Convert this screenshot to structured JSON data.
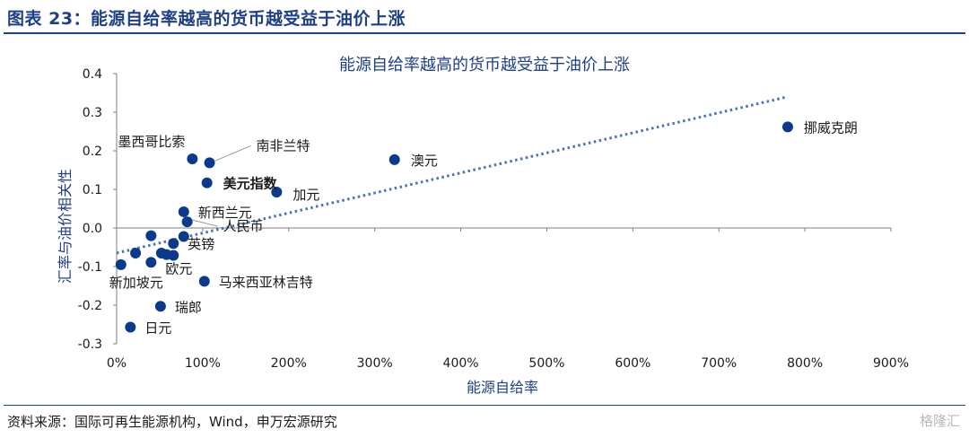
{
  "header": {
    "title": "图表 23：能源自给率越高的货币越受益于油价上涨"
  },
  "footer": {
    "source": "资料来源：国际可再生能源机构，Wind，申万宏源研究",
    "watermark": "格隆汇"
  },
  "colors": {
    "accent": "#1f3f86",
    "point": "#0a3a8c",
    "trend": "#4a72b8"
  },
  "chart_data": {
    "type": "scatter",
    "title": "能源自给率越高的货币越受益于油价上涨",
    "xlabel": "能源自给率",
    "ylabel": "汇率与油价相关性",
    "xlim": [
      0,
      900
    ],
    "ylim": [
      -0.3,
      0.4
    ],
    "x_ticks": [
      "0%",
      "100%",
      "200%",
      "300%",
      "400%",
      "500%",
      "600%",
      "700%",
      "800%",
      "900%"
    ],
    "y_ticks": [
      "-0.3",
      "-0.2",
      "-0.1",
      "0.0",
      "0.1",
      "0.2",
      "0.3",
      "0.4"
    ],
    "grid": false,
    "trendline": {
      "style": "dotted",
      "x": [
        0,
        780
      ],
      "y": [
        -0.065,
        0.34
      ]
    },
    "points": [
      {
        "label": "挪威克朗",
        "x": 780,
        "y": 0.262
      },
      {
        "label": "澳元",
        "x": 323,
        "y": 0.177
      },
      {
        "label": "墨西哥比索",
        "x": 88,
        "y": 0.179
      },
      {
        "label": "南非兰特",
        "x": 108,
        "y": 0.169
      },
      {
        "label": "美元指数",
        "x": 105,
        "y": 0.117,
        "bold": true
      },
      {
        "label": "加元",
        "x": 186,
        "y": 0.093
      },
      {
        "label": "新西兰元",
        "x": 78,
        "y": 0.042
      },
      {
        "label": "人民币",
        "x": 82,
        "y": 0.016
      },
      {
        "label": "",
        "x": 40,
        "y": -0.02
      },
      {
        "label": "",
        "x": 78,
        "y": -0.022
      },
      {
        "label": "英镑",
        "x": 66,
        "y": -0.04
      },
      {
        "label": "",
        "x": 22,
        "y": -0.065
      },
      {
        "label": "",
        "x": 52,
        "y": -0.065
      },
      {
        "label": "",
        "x": 58,
        "y": -0.069
      },
      {
        "label": "",
        "x": 66,
        "y": -0.071
      },
      {
        "label": "欧元",
        "x": 40,
        "y": -0.089
      },
      {
        "label": "新加坡元",
        "x": 5,
        "y": -0.095
      },
      {
        "label": "马来西亚林吉特",
        "x": 102,
        "y": -0.138
      },
      {
        "label": "瑞郎",
        "x": 51,
        "y": -0.203
      },
      {
        "label": "日元",
        "x": 16,
        "y": -0.257
      }
    ]
  }
}
